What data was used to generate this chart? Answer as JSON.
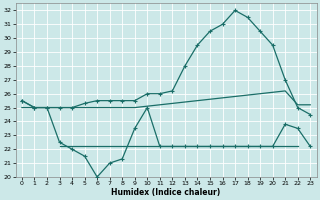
{
  "x": [
    0,
    1,
    2,
    3,
    4,
    5,
    6,
    7,
    8,
    9,
    10,
    11,
    12,
    13,
    14,
    15,
    16,
    17,
    18,
    19,
    20,
    21,
    22,
    23
  ],
  "upper_curve": [
    25.5,
    25.0,
    25.0,
    25.0,
    25.0,
    25.3,
    25.5,
    25.5,
    25.5,
    25.5,
    26.0,
    26.0,
    26.2,
    28.0,
    29.5,
    30.5,
    31.0,
    32.0,
    31.5,
    30.5,
    29.5,
    27.0,
    25.0,
    24.5
  ],
  "lower_curve": [
    25.5,
    25.0,
    25.0,
    22.5,
    22.0,
    21.5,
    20.0,
    21.0,
    21.3,
    23.5,
    25.0,
    22.2,
    22.2,
    22.2,
    22.2,
    22.2,
    22.2,
    22.2,
    22.2,
    22.2,
    22.2,
    23.8,
    23.5,
    22.2
  ],
  "diag_line": [
    25.0,
    25.0,
    25.0,
    25.0,
    25.0,
    25.0,
    25.0,
    25.0,
    25.0,
    25.0,
    25.1,
    25.2,
    25.3,
    25.4,
    25.5,
    25.6,
    25.7,
    25.8,
    25.9,
    26.0,
    26.1,
    26.2,
    25.2,
    25.2
  ],
  "flat_line_y": 22.2,
  "flat_line_x_start": 3,
  "flat_line_x_end": 22,
  "bg_color": "#cce8e8",
  "line_color": "#1a6e68",
  "grid_color": "#aed8d8",
  "xlabel": "Humidex (Indice chaleur)",
  "ylim": [
    20,
    32.5
  ],
  "xlim": [
    -0.5,
    23.5
  ],
  "yticks": [
    20,
    21,
    22,
    23,
    24,
    25,
    26,
    27,
    28,
    29,
    30,
    31,
    32
  ],
  "xticks": [
    0,
    1,
    2,
    3,
    4,
    5,
    6,
    7,
    8,
    9,
    10,
    11,
    12,
    13,
    14,
    15,
    16,
    17,
    18,
    19,
    20,
    21,
    22,
    23
  ]
}
